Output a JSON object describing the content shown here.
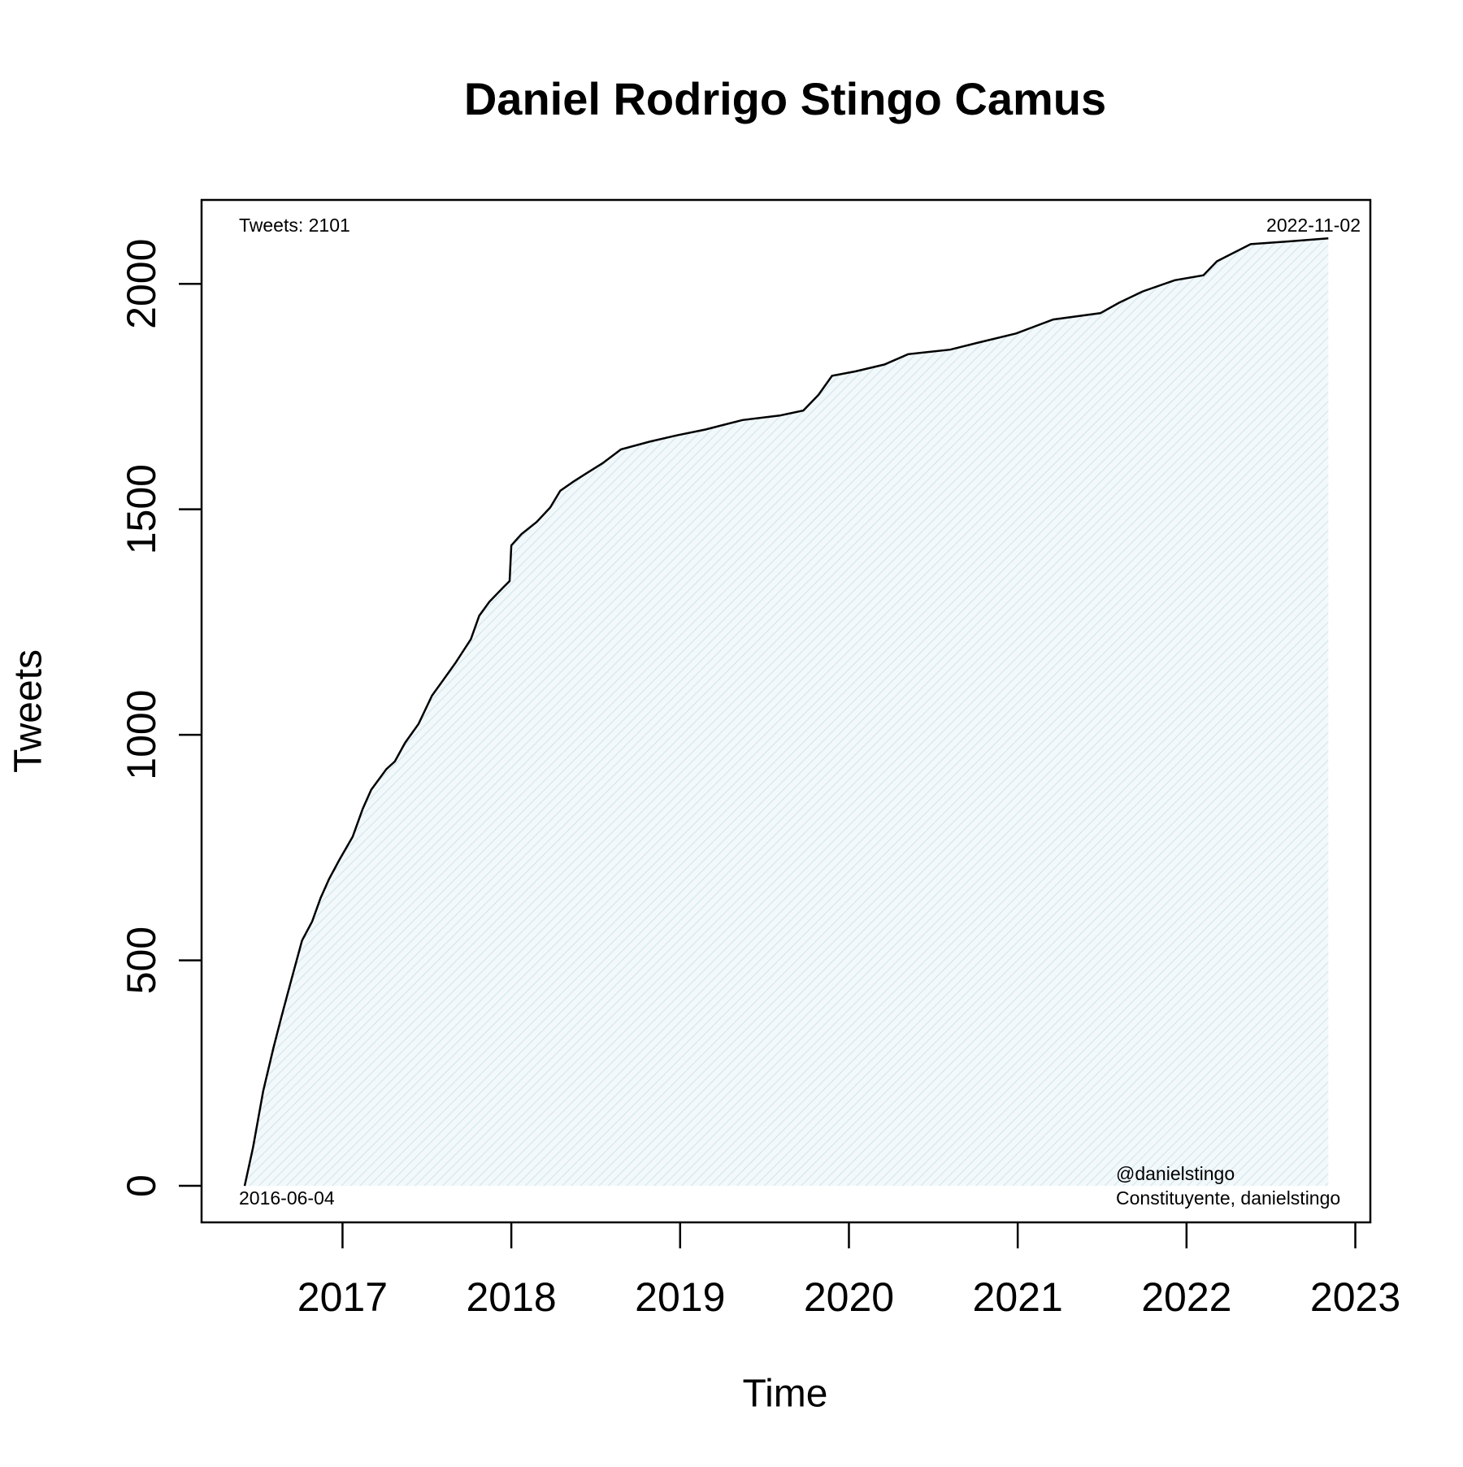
{
  "chart_data": {
    "type": "line",
    "title": "Daniel Rodrigo Stingo Camus",
    "x_label": "Time",
    "y_label": "Tweets",
    "annotations": {
      "top_left": "Tweets: 2101",
      "top_right": "2022-11-02",
      "bottom_left": "2016-06-04",
      "bottom_right_1": "@danielstingo",
      "bottom_right_2": "Constituyente, danielstingo"
    },
    "x": [
      2016.42,
      2016.47,
      2016.53,
      2016.59,
      2016.64,
      2016.7,
      2016.76,
      2016.82,
      2016.87,
      2016.92,
      2016.98,
      2017.06,
      2017.12,
      2017.17,
      2017.26,
      2017.31,
      2017.37,
      2017.45,
      2017.53,
      2017.59,
      2017.67,
      2017.76,
      2017.81,
      2017.87,
      2017.95,
      2017.99,
      2018.0,
      2018.06,
      2018.15,
      2018.23,
      2018.29,
      2018.37,
      2018.45,
      2018.54,
      2018.65,
      2018.82,
      2018.98,
      2019.15,
      2019.37,
      2019.59,
      2019.73,
      2019.82,
      2019.9,
      2020.04,
      2020.21,
      2020.35,
      2020.6,
      2020.76,
      2020.99,
      2021.21,
      2021.49,
      2021.6,
      2021.74,
      2021.93,
      2022.1,
      2022.18,
      2022.27,
      2022.38,
      2022.6,
      2022.84
    ],
    "series": [
      {
        "color": "#000000",
        "fill": "#d9eaf0",
        "values": [
          0,
          85,
          210,
          305,
          377,
          461,
          544,
          586,
          638,
          680,
          722,
          774,
          836,
          878,
          924,
          941,
          982,
          1024,
          1087,
          1118,
          1160,
          1212,
          1264,
          1295,
          1326,
          1341,
          1420,
          1445,
          1472,
          1504,
          1541,
          1562,
          1581,
          1602,
          1633,
          1650,
          1664,
          1677,
          1698,
          1708,
          1719,
          1754,
          1796,
          1806,
          1821,
          1844,
          1854,
          1869,
          1890,
          1921,
          1935,
          1958,
          1983,
          2008,
          2019,
          2050,
          2067,
          2088,
          2094,
          2101
        ]
      }
    ],
    "xlim": [
      2016.165,
      2023.089
    ],
    "xticks": [
      2017,
      2018,
      2019,
      2020,
      2021,
      2022,
      2023
    ],
    "ylim": [
      -81,
      2186
    ],
    "yticks": [
      0,
      500,
      1000,
      1500,
      2000
    ],
    "grid": false
  }
}
